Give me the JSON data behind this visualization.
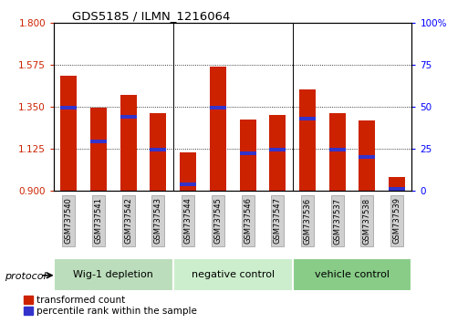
{
  "title": "GDS5185 / ILMN_1216064",
  "samples": [
    "GSM737540",
    "GSM737541",
    "GSM737542",
    "GSM737543",
    "GSM737544",
    "GSM737545",
    "GSM737546",
    "GSM737547",
    "GSM737536",
    "GSM737537",
    "GSM737538",
    "GSM737539"
  ],
  "bar_values": [
    1.515,
    1.345,
    1.415,
    1.315,
    1.105,
    1.565,
    1.28,
    1.305,
    1.44,
    1.315,
    1.275,
    0.975
  ],
  "percentile_values": [
    1.345,
    1.165,
    1.295,
    1.12,
    0.935,
    1.345,
    1.1,
    1.12,
    1.285,
    1.12,
    1.08,
    0.91
  ],
  "ymin": 0.9,
  "ymax": 1.8,
  "yticks_left": [
    0.9,
    1.125,
    1.35,
    1.575,
    1.8
  ],
  "yticks_right": [
    0,
    25,
    50,
    75,
    100
  ],
  "bar_color": "#cc2200",
  "percentile_color": "#3333cc",
  "groups": [
    {
      "label": "Wig-1 depletion",
      "start": 0,
      "end": 4,
      "color": "#bbddbb"
    },
    {
      "label": "negative control",
      "start": 4,
      "end": 8,
      "color": "#cceecc"
    },
    {
      "label": "vehicle control",
      "start": 8,
      "end": 12,
      "color": "#88cc88"
    }
  ],
  "protocol_label": "protocol",
  "legend_red": "transformed count",
  "legend_blue": "percentile rank within the sample",
  "bar_width": 0.55
}
